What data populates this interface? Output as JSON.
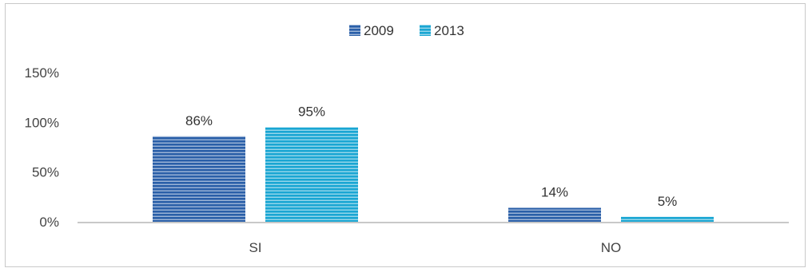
{
  "chart_data": {
    "type": "bar",
    "categories": [
      "SI",
      "NO"
    ],
    "series": [
      {
        "name": "2009",
        "values": [
          0.86,
          0.14
        ],
        "color": "#2a5fa8",
        "labels": [
          "86%",
          "14%"
        ]
      },
      {
        "name": "2013",
        "values": [
          0.95,
          0.05
        ],
        "color": "#1aa6d3",
        "labels": [
          "95%",
          "5%"
        ]
      }
    ],
    "yticks": [
      "0%",
      "50%",
      "100%",
      "150%"
    ],
    "ylim": [
      0,
      1.5
    ],
    "grid": false,
    "legend_position": "top-center",
    "bar_pattern": "horizontal-stripes"
  }
}
